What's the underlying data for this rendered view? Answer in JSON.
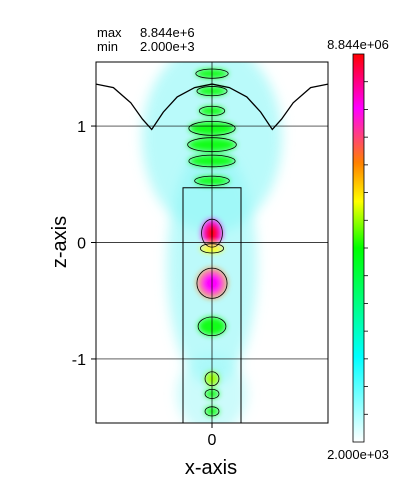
{
  "header": {
    "max_label": "max",
    "max_value": "8.844e+6",
    "min_label": "min",
    "min_value": "2.000e+3"
  },
  "colorbar": {
    "top_label": "8.844e+06",
    "bottom_label": "2.000e+03",
    "colors": [
      "#ffffff",
      "#00ffff",
      "#00ff00",
      "#ffff00",
      "#ff8000",
      "#ff00ff",
      "#ff0000"
    ]
  },
  "chart_data": {
    "type": "heatmap",
    "title": "",
    "xlabel": "x-axis",
    "ylabel": "z-axis",
    "x_ticks": [
      0
    ],
    "x_tick_labels": [
      "0"
    ],
    "y_ticks": [
      1,
      0,
      -1
    ],
    "y_tick_labels": [
      "1",
      "0",
      "-1"
    ],
    "xlim": [
      -1,
      1
    ],
    "ylim": [
      -1.55,
      1.55
    ],
    "value_range": [
      2000,
      8844000
    ],
    "grid": true,
    "structure_box": {
      "x": [
        -0.25,
        0.25
      ],
      "z": [
        -1.55,
        0.47
      ]
    },
    "surface_profile": [
      {
        "x": -1.0,
        "z": 1.36
      },
      {
        "x": -0.85,
        "z": 1.33
      },
      {
        "x": -0.7,
        "z": 1.2
      },
      {
        "x": -0.6,
        "z": 1.06
      },
      {
        "x": -0.52,
        "z": 0.97
      },
      {
        "x": -0.42,
        "z": 1.12
      },
      {
        "x": -0.3,
        "z": 1.25
      },
      {
        "x": -0.15,
        "z": 1.33
      },
      {
        "x": 0.0,
        "z": 1.36
      },
      {
        "x": 0.15,
        "z": 1.33
      },
      {
        "x": 0.3,
        "z": 1.25
      },
      {
        "x": 0.42,
        "z": 1.12
      },
      {
        "x": 0.52,
        "z": 0.97
      },
      {
        "x": 0.6,
        "z": 1.06
      },
      {
        "x": 0.7,
        "z": 1.2
      },
      {
        "x": 0.85,
        "z": 1.33
      },
      {
        "x": 1.0,
        "z": 1.36
      }
    ],
    "field_lobes": [
      {
        "z": 1.45,
        "rx": 0.14,
        "rz": 0.04,
        "value": 0.12
      },
      {
        "z": 1.3,
        "rx": 0.13,
        "rz": 0.04,
        "value": 0.1
      },
      {
        "z": 1.13,
        "rx": 0.11,
        "rz": 0.04,
        "value": 0.1
      },
      {
        "z": 0.98,
        "rx": 0.2,
        "rz": 0.06,
        "value": 0.18
      },
      {
        "z": 0.84,
        "rx": 0.21,
        "rz": 0.06,
        "value": 0.2
      },
      {
        "z": 0.7,
        "rx": 0.2,
        "rz": 0.05,
        "value": 0.17
      },
      {
        "z": 0.53,
        "rx": 0.15,
        "rz": 0.04,
        "value": 0.12
      },
      {
        "z": 0.08,
        "rx": 0.09,
        "rz": 0.12,
        "value": 0.95
      },
      {
        "z": -0.05,
        "rx": 0.1,
        "rz": 0.04,
        "value": 0.55
      },
      {
        "z": -0.35,
        "rx": 0.13,
        "rz": 0.13,
        "value": 0.85
      },
      {
        "z": -0.72,
        "rx": 0.12,
        "rz": 0.08,
        "value": 0.35
      },
      {
        "z": -1.17,
        "rx": 0.06,
        "rz": 0.06,
        "value": 0.45
      },
      {
        "z": -1.3,
        "rx": 0.06,
        "rz": 0.04,
        "value": 0.3
      },
      {
        "z": -1.45,
        "rx": 0.06,
        "rz": 0.04,
        "value": 0.25
      }
    ]
  }
}
